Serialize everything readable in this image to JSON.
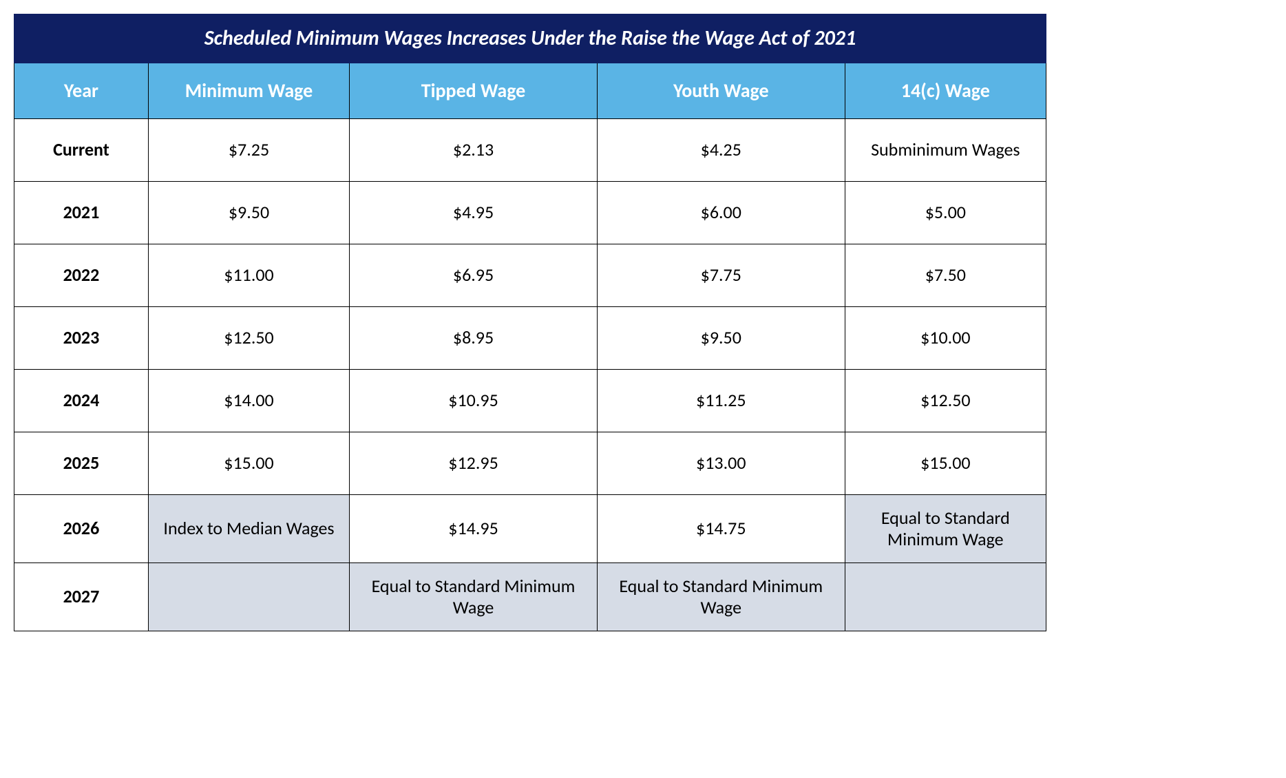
{
  "table": {
    "title": "Scheduled Minimum Wages Increases Under the Raise the Wage Act of 2021",
    "title_bg": "#0f1f63",
    "title_color": "#ffffff",
    "header_bg": "#5ab4e5",
    "header_color": "#ffffff",
    "shade_bg": "#d6dce6",
    "border_color": "#000000",
    "columns": [
      "Year",
      "Minimum Wage",
      "Tipped Wage",
      "Youth Wage",
      "14(c) Wage"
    ],
    "col_widths_pct": [
      13,
      19.5,
      24,
      24,
      19.5
    ],
    "rows": [
      {
        "year": "Current",
        "cells": [
          {
            "text": "$7.25",
            "shaded": false
          },
          {
            "text": "$2.13",
            "shaded": false
          },
          {
            "text": "$4.25",
            "shaded": false
          },
          {
            "text": "Subminimum Wages",
            "shaded": false
          }
        ]
      },
      {
        "year": "2021",
        "cells": [
          {
            "text": "$9.50",
            "shaded": false
          },
          {
            "text": "$4.95",
            "shaded": false
          },
          {
            "text": "$6.00",
            "shaded": false
          },
          {
            "text": "$5.00",
            "shaded": false
          }
        ]
      },
      {
        "year": "2022",
        "cells": [
          {
            "text": "$11.00",
            "shaded": false
          },
          {
            "text": "$6.95",
            "shaded": false
          },
          {
            "text": "$7.75",
            "shaded": false
          },
          {
            "text": "$7.50",
            "shaded": false
          }
        ]
      },
      {
        "year": "2023",
        "cells": [
          {
            "text": "$12.50",
            "shaded": false
          },
          {
            "text": "$8.95",
            "shaded": false
          },
          {
            "text": "$9.50",
            "shaded": false
          },
          {
            "text": "$10.00",
            "shaded": false
          }
        ]
      },
      {
        "year": "2024",
        "cells": [
          {
            "text": "$14.00",
            "shaded": false
          },
          {
            "text": "$10.95",
            "shaded": false
          },
          {
            "text": "$11.25",
            "shaded": false
          },
          {
            "text": "$12.50",
            "shaded": false
          }
        ]
      },
      {
        "year": "2025",
        "cells": [
          {
            "text": "$15.00",
            "shaded": false
          },
          {
            "text": "$12.95",
            "shaded": false
          },
          {
            "text": "$13.00",
            "shaded": false
          },
          {
            "text": "$15.00",
            "shaded": false
          }
        ]
      },
      {
        "year": "2026",
        "cells": [
          {
            "text": "Index to Median Wages",
            "shaded": true
          },
          {
            "text": "$14.95",
            "shaded": false
          },
          {
            "text": "$14.75",
            "shaded": false
          },
          {
            "text": "Equal to Standard Minimum Wage",
            "shaded": true
          }
        ]
      },
      {
        "year": "2027",
        "cells": [
          {
            "text": "",
            "shaded": true
          },
          {
            "text": "Equal to Standard Minimum Wage",
            "shaded": true
          },
          {
            "text": "Equal to Standard Minimum Wage",
            "shaded": true
          },
          {
            "text": "",
            "shaded": true
          }
        ]
      }
    ]
  }
}
